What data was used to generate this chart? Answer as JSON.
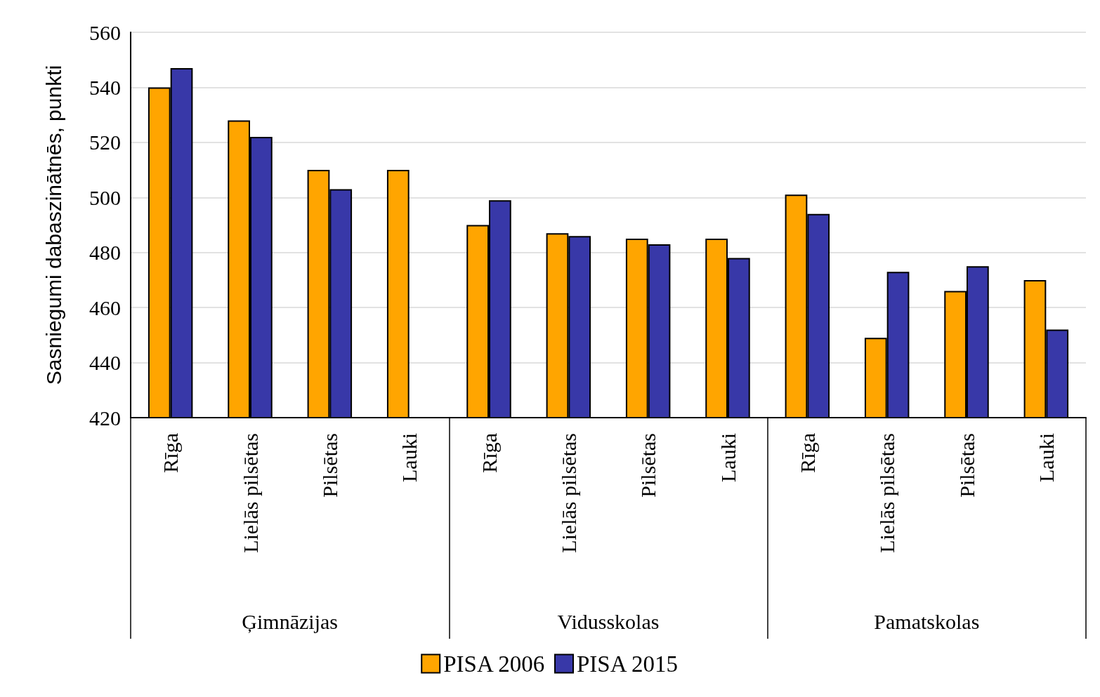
{
  "chart_data": {
    "type": "bar",
    "ylabel": "Sasniegumi dabaszinātnēs, punkti",
    "categories": [
      "Rīga",
      "Lielās pilsētas",
      "Pilsētas",
      "Lauki",
      "Rīga",
      "Lielās pilsētas",
      "Pilsētas",
      "Lauki",
      "Rīga",
      "Lielās pilsētas",
      "Pilsētas",
      "Lauki"
    ],
    "series": [
      {
        "name": "PISA 2006",
        "color": "#ffa500",
        "values": [
          540,
          528,
          510,
          510,
          490,
          487,
          485,
          485,
          501,
          449,
          466,
          470
        ]
      },
      {
        "name": "PISA 2015",
        "color": "#3838a8",
        "values": [
          547,
          522,
          503,
          null,
          499,
          486,
          483,
          478,
          494,
          473,
          475,
          452
        ]
      }
    ],
    "annotations": [
      "Ģimnāzijas",
      "Vidusskolas",
      "Pamatskolas"
    ],
    "ylim": [
      420,
      560
    ],
    "yticks": [
      420,
      440,
      460,
      480,
      500,
      520,
      540,
      560
    ],
    "grid": "y",
    "legend": "bottom"
  }
}
